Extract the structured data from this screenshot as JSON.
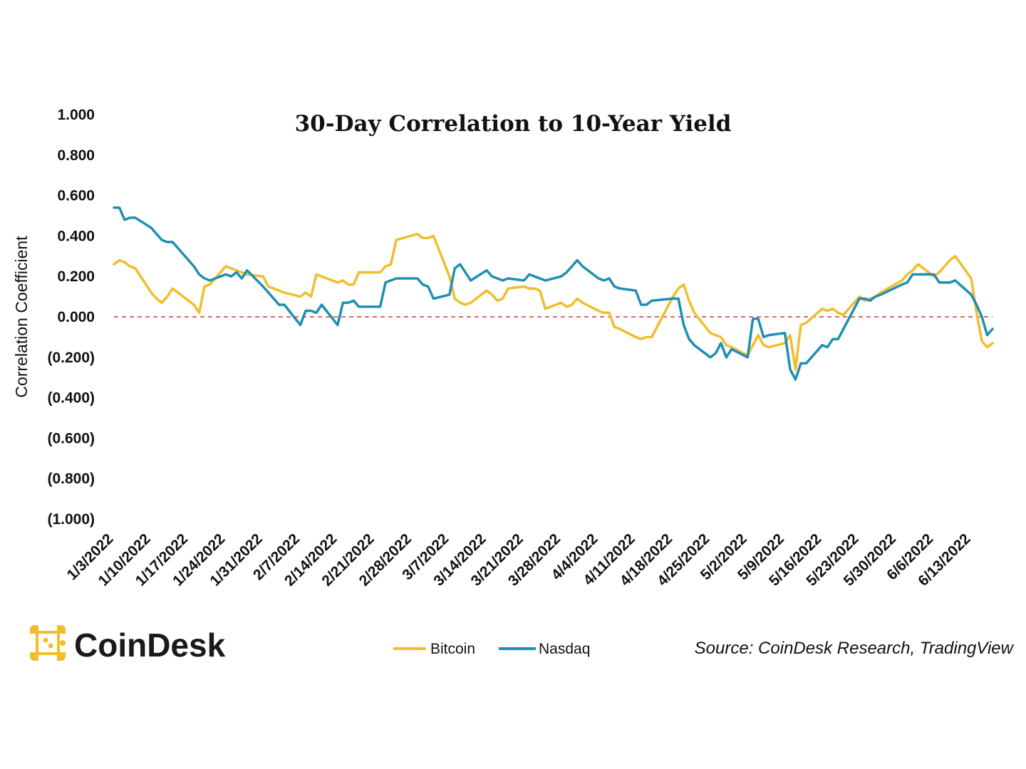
{
  "chart_data": {
    "type": "line",
    "title": "30-Day Correlation to 10-Year Yield",
    "ylabel": "Correlation Coefficient",
    "xlabel": "",
    "ylim": [
      -1,
      1
    ],
    "yticks": [
      1,
      0.8,
      0.6,
      0.4,
      0.2,
      0,
      -0.2,
      -0.4,
      -0.6,
      -0.8,
      -1
    ],
    "ytick_labels": [
      "1.000",
      "0.800",
      "0.600",
      "0.400",
      "0.200",
      "0.000",
      "(0.200)",
      "(0.400)",
      "(0.600)",
      "(0.800)",
      "(1.000)"
    ],
    "x_tick_labels": [
      "1/3/2022",
      "1/10/2022",
      "1/17/2022",
      "1/24/2022",
      "1/31/2022",
      "2/7/2022",
      "2/14/2022",
      "2/21/2022",
      "2/28/2022",
      "3/7/2022",
      "3/14/2022",
      "3/21/2022",
      "3/28/2022",
      "4/4/2022",
      "4/11/2022",
      "4/18/2022",
      "4/25/2022",
      "5/2/2022",
      "5/9/2022",
      "5/16/2022",
      "5/23/2022",
      "5/30/2022",
      "6/6/2022",
      "6/13/2022"
    ],
    "x_start": "1/3/2022",
    "x_end": "6/17/2022",
    "reference_line": {
      "y": 0,
      "color": "#e03030",
      "style": "dashed"
    },
    "legend_position": "bottom-center",
    "series": [
      {
        "name": "Bitcoin",
        "color": "#f2bd2c",
        "points": [
          [
            "1/3/2022",
            0.26
          ],
          [
            "1/4/2022",
            0.28
          ],
          [
            "1/5/2022",
            0.27
          ],
          [
            "1/6/2022",
            0.25
          ],
          [
            "1/7/2022",
            0.24
          ],
          [
            "1/10/2022",
            0.12
          ],
          [
            "1/11/2022",
            0.09
          ],
          [
            "1/12/2022",
            0.07
          ],
          [
            "1/13/2022",
            0.1
          ],
          [
            "1/14/2022",
            0.14
          ],
          [
            "1/18/2022",
            0.06
          ],
          [
            "1/19/2022",
            0.02
          ],
          [
            "1/20/2022",
            0.15
          ],
          [
            "1/21/2022",
            0.16
          ],
          [
            "1/24/2022",
            0.25
          ],
          [
            "1/25/2022",
            0.24
          ],
          [
            "1/26/2022",
            0.23
          ],
          [
            "1/27/2022",
            0.22
          ],
          [
            "1/28/2022",
            0.21
          ],
          [
            "1/31/2022",
            0.2
          ],
          [
            "2/1/2022",
            0.15
          ],
          [
            "2/2/2022",
            0.14
          ],
          [
            "2/3/2022",
            0.13
          ],
          [
            "2/4/2022",
            0.12
          ],
          [
            "2/7/2022",
            0.1
          ],
          [
            "2/8/2022",
            0.12
          ],
          [
            "2/9/2022",
            0.1
          ],
          [
            "2/10/2022",
            0.21
          ],
          [
            "2/11/2022",
            0.2
          ],
          [
            "2/14/2022",
            0.17
          ],
          [
            "2/15/2022",
            0.18
          ],
          [
            "2/16/2022",
            0.16
          ],
          [
            "2/17/2022",
            0.16
          ],
          [
            "2/18/2022",
            0.22
          ],
          [
            "2/22/2022",
            0.22
          ],
          [
            "2/23/2022",
            0.25
          ],
          [
            "2/24/2022",
            0.26
          ],
          [
            "2/25/2022",
            0.38
          ],
          [
            "3/1/2022",
            0.41
          ],
          [
            "3/2/2022",
            0.39
          ],
          [
            "3/3/2022",
            0.39
          ],
          [
            "3/4/2022",
            0.4
          ],
          [
            "3/7/2022",
            0.2
          ],
          [
            "3/8/2022",
            0.09
          ],
          [
            "3/9/2022",
            0.07
          ],
          [
            "3/10/2022",
            0.06
          ],
          [
            "3/11/2022",
            0.07
          ],
          [
            "3/14/2022",
            0.13
          ],
          [
            "3/15/2022",
            0.11
          ],
          [
            "3/16/2022",
            0.08
          ],
          [
            "3/17/2022",
            0.09
          ],
          [
            "3/18/2022",
            0.14
          ],
          [
            "3/21/2022",
            0.15
          ],
          [
            "3/22/2022",
            0.14
          ],
          [
            "3/23/2022",
            0.14
          ],
          [
            "3/24/2022",
            0.13
          ],
          [
            "3/25/2022",
            0.04
          ],
          [
            "3/28/2022",
            0.07
          ],
          [
            "3/29/2022",
            0.05
          ],
          [
            "3/30/2022",
            0.06
          ],
          [
            "3/31/2022",
            0.09
          ],
          [
            "4/1/2022",
            0.07
          ],
          [
            "4/4/2022",
            0.03
          ],
          [
            "4/5/2022",
            0.02
          ],
          [
            "4/6/2022",
            0.02
          ],
          [
            "4/7/2022",
            -0.05
          ],
          [
            "4/8/2022",
            -0.06
          ],
          [
            "4/11/2022",
            -0.1
          ],
          [
            "4/12/2022",
            -0.11
          ],
          [
            "4/13/2022",
            -0.1
          ],
          [
            "4/14/2022",
            -0.1
          ],
          [
            "4/18/2022",
            0.1
          ],
          [
            "4/19/2022",
            0.14
          ],
          [
            "4/20/2022",
            0.16
          ],
          [
            "4/21/2022",
            0.08
          ],
          [
            "4/22/2022",
            0.02
          ],
          [
            "4/25/2022",
            -0.08
          ],
          [
            "4/26/2022",
            -0.09
          ],
          [
            "4/27/2022",
            -0.1
          ],
          [
            "4/28/2022",
            -0.14
          ],
          [
            "4/29/2022",
            -0.15
          ],
          [
            "5/2/2022",
            -0.19
          ],
          [
            "5/3/2022",
            -0.14
          ],
          [
            "5/4/2022",
            -0.09
          ],
          [
            "5/5/2022",
            -0.14
          ],
          [
            "5/6/2022",
            -0.15
          ],
          [
            "5/9/2022",
            -0.13
          ],
          [
            "5/10/2022",
            -0.09
          ],
          [
            "5/11/2022",
            -0.26
          ],
          [
            "5/12/2022",
            -0.04
          ],
          [
            "5/13/2022",
            -0.03
          ],
          [
            "5/16/2022",
            0.04
          ],
          [
            "5/17/2022",
            0.03
          ],
          [
            "5/18/2022",
            0.04
          ],
          [
            "5/19/2022",
            0.02
          ],
          [
            "5/20/2022",
            0.01
          ],
          [
            "5/23/2022",
            0.1
          ],
          [
            "5/24/2022",
            0.08
          ],
          [
            "5/25/2022",
            0.09
          ],
          [
            "5/26/2022",
            0.1
          ],
          [
            "5/27/2022",
            0.12
          ],
          [
            "5/31/2022",
            0.18
          ],
          [
            "6/1/2022",
            0.21
          ],
          [
            "6/2/2022",
            0.23
          ],
          [
            "6/3/2022",
            0.26
          ],
          [
            "6/6/2022",
            0.2
          ],
          [
            "6/7/2022",
            0.22
          ],
          [
            "6/8/2022",
            0.25
          ],
          [
            "6/9/2022",
            0.28
          ],
          [
            "6/10/2022",
            0.3
          ],
          [
            "6/13/2022",
            0.19
          ],
          [
            "6/14/2022",
            0.02
          ],
          [
            "6/15/2022",
            -0.12
          ],
          [
            "6/16/2022",
            -0.15
          ],
          [
            "6/17/2022",
            -0.13
          ]
        ]
      },
      {
        "name": "Nasdaq",
        "color": "#1f8fb3",
        "points": [
          [
            "1/3/2022",
            0.54
          ],
          [
            "1/4/2022",
            0.54
          ],
          [
            "1/5/2022",
            0.48
          ],
          [
            "1/6/2022",
            0.49
          ],
          [
            "1/7/2022",
            0.49
          ],
          [
            "1/10/2022",
            0.44
          ],
          [
            "1/11/2022",
            0.41
          ],
          [
            "1/12/2022",
            0.38
          ],
          [
            "1/13/2022",
            0.37
          ],
          [
            "1/14/2022",
            0.37
          ],
          [
            "1/18/2022",
            0.25
          ],
          [
            "1/19/2022",
            0.21
          ],
          [
            "1/20/2022",
            0.19
          ],
          [
            "1/21/2022",
            0.18
          ],
          [
            "1/24/2022",
            0.21
          ],
          [
            "1/25/2022",
            0.2
          ],
          [
            "1/26/2022",
            0.22
          ],
          [
            "1/27/2022",
            0.19
          ],
          [
            "1/28/2022",
            0.23
          ],
          [
            "1/31/2022",
            0.15
          ],
          [
            "2/1/2022",
            0.12
          ],
          [
            "2/2/2022",
            0.09
          ],
          [
            "2/3/2022",
            0.06
          ],
          [
            "2/4/2022",
            0.06
          ],
          [
            "2/7/2022",
            -0.04
          ],
          [
            "2/8/2022",
            0.03
          ],
          [
            "2/9/2022",
            0.03
          ],
          [
            "2/10/2022",
            0.02
          ],
          [
            "2/11/2022",
            0.06
          ],
          [
            "2/14/2022",
            -0.04
          ],
          [
            "2/15/2022",
            0.07
          ],
          [
            "2/16/2022",
            0.07
          ],
          [
            "2/17/2022",
            0.08
          ],
          [
            "2/18/2022",
            0.05
          ],
          [
            "2/22/2022",
            0.05
          ],
          [
            "2/23/2022",
            0.17
          ],
          [
            "2/24/2022",
            0.18
          ],
          [
            "2/25/2022",
            0.19
          ],
          [
            "3/1/2022",
            0.19
          ],
          [
            "3/2/2022",
            0.16
          ],
          [
            "3/3/2022",
            0.15
          ],
          [
            "3/4/2022",
            0.09
          ],
          [
            "3/7/2022",
            0.11
          ],
          [
            "3/8/2022",
            0.24
          ],
          [
            "3/9/2022",
            0.26
          ],
          [
            "3/10/2022",
            0.22
          ],
          [
            "3/11/2022",
            0.18
          ],
          [
            "3/14/2022",
            0.23
          ],
          [
            "3/15/2022",
            0.2
          ],
          [
            "3/16/2022",
            0.19
          ],
          [
            "3/17/2022",
            0.18
          ],
          [
            "3/18/2022",
            0.19
          ],
          [
            "3/21/2022",
            0.18
          ],
          [
            "3/22/2022",
            0.21
          ],
          [
            "3/23/2022",
            0.2
          ],
          [
            "3/24/2022",
            0.19
          ],
          [
            "3/25/2022",
            0.18
          ],
          [
            "3/28/2022",
            0.2
          ],
          [
            "3/29/2022",
            0.22
          ],
          [
            "3/30/2022",
            0.25
          ],
          [
            "3/31/2022",
            0.28
          ],
          [
            "4/1/2022",
            0.25
          ],
          [
            "4/4/2022",
            0.19
          ],
          [
            "4/5/2022",
            0.18
          ],
          [
            "4/6/2022",
            0.19
          ],
          [
            "4/7/2022",
            0.15
          ],
          [
            "4/8/2022",
            0.14
          ],
          [
            "4/11/2022",
            0.13
          ],
          [
            "4/12/2022",
            0.06
          ],
          [
            "4/13/2022",
            0.06
          ],
          [
            "4/14/2022",
            0.08
          ],
          [
            "4/18/2022",
            0.09
          ],
          [
            "4/19/2022",
            0.09
          ],
          [
            "4/20/2022",
            -0.04
          ],
          [
            "4/21/2022",
            -0.11
          ],
          [
            "4/22/2022",
            -0.14
          ],
          [
            "4/25/2022",
            -0.2
          ],
          [
            "4/26/2022",
            -0.18
          ],
          [
            "4/27/2022",
            -0.13
          ],
          [
            "4/28/2022",
            -0.2
          ],
          [
            "4/29/2022",
            -0.16
          ],
          [
            "5/2/2022",
            -0.2
          ],
          [
            "5/3/2022",
            -0.01
          ],
          [
            "5/4/2022",
            -0.01
          ],
          [
            "5/5/2022",
            -0.1
          ],
          [
            "5/6/2022",
            -0.09
          ],
          [
            "5/9/2022",
            -0.08
          ],
          [
            "5/10/2022",
            -0.26
          ],
          [
            "5/11/2022",
            -0.31
          ],
          [
            "5/12/2022",
            -0.23
          ],
          [
            "5/13/2022",
            -0.23
          ],
          [
            "5/16/2022",
            -0.14
          ],
          [
            "5/17/2022",
            -0.15
          ],
          [
            "5/18/2022",
            -0.11
          ],
          [
            "5/19/2022",
            -0.11
          ],
          [
            "5/20/2022",
            -0.06
          ],
          [
            "5/23/2022",
            0.09
          ],
          [
            "5/24/2022",
            0.09
          ],
          [
            "5/25/2022",
            0.08
          ],
          [
            "5/26/2022",
            0.1
          ],
          [
            "5/27/2022",
            0.11
          ],
          [
            "5/31/2022",
            0.16
          ],
          [
            "6/1/2022",
            0.17
          ],
          [
            "6/2/2022",
            0.21
          ],
          [
            "6/3/2022",
            0.21
          ],
          [
            "6/6/2022",
            0.21
          ],
          [
            "6/7/2022",
            0.17
          ],
          [
            "6/8/2022",
            0.17
          ],
          [
            "6/9/2022",
            0.17
          ],
          [
            "6/10/2022",
            0.18
          ],
          [
            "6/13/2022",
            0.11
          ],
          [
            "6/14/2022",
            0.06
          ],
          [
            "6/15/2022",
            0.0
          ],
          [
            "6/16/2022",
            -0.09
          ],
          [
            "6/17/2022",
            -0.06
          ]
        ]
      }
    ]
  },
  "footer": {
    "brand": "CoinDesk",
    "source": "Source: CoinDesk Research, TradingView",
    "brand_color": "#f2bd2c"
  }
}
